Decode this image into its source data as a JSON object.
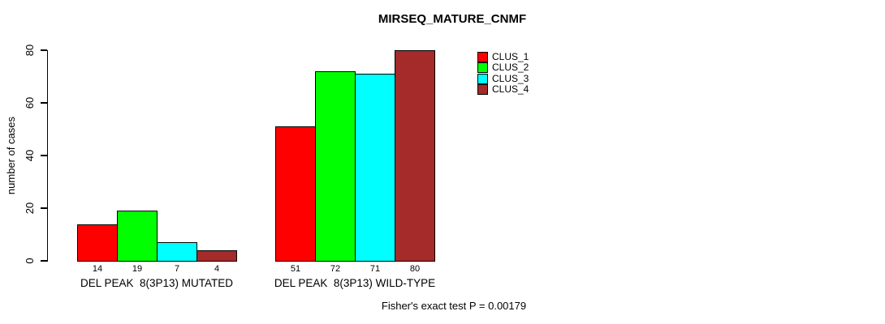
{
  "chart_data": {
    "type": "bar",
    "title": "MIRSEQ_MATURE_CNMF",
    "ylabel": "number of cases",
    "xlabel": "",
    "ylim": [
      0,
      80
    ],
    "yticks": [
      0,
      20,
      40,
      60,
      80
    ],
    "grid": false,
    "legend_position": "top-right",
    "bar_value_labels": true,
    "categories": [
      "DEL PEAK  8(3P13) MUTATED",
      "DEL PEAK  8(3P13) WILD-TYPE"
    ],
    "series": [
      {
        "name": "CLUS_1",
        "color": "#FF0000",
        "values": [
          14,
          51
        ]
      },
      {
        "name": "CLUS_2",
        "color": "#00FF00",
        "values": [
          19,
          72
        ]
      },
      {
        "name": "CLUS_3",
        "color": "#00FFFF",
        "values": [
          7,
          71
        ]
      },
      {
        "name": "CLUS_4",
        "color": "#A52A2A",
        "values": [
          4,
          80
        ]
      }
    ],
    "footnote": "Fisher's exact test P = 0.00179"
  }
}
